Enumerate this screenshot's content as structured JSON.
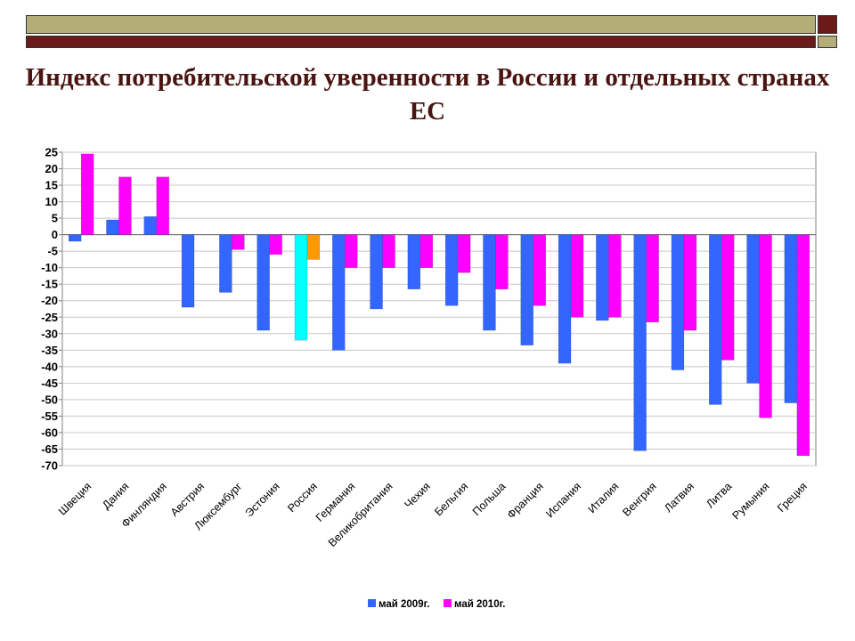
{
  "slide": {
    "title": "Индекс потребительской уверенности в России и отдельных странах ЕС"
  },
  "colors": {
    "series1": "#3366ff",
    "series2": "#ff00ff",
    "highlight1": "#00ffff",
    "highlight2": "#ff9900",
    "deco_olive": "#b4ad78",
    "deco_maroon": "#6b1a1a",
    "title": "#4a1410"
  },
  "chart_data": {
    "type": "bar",
    "title": "",
    "xlabel": "",
    "ylabel": "",
    "ylim": [
      -70,
      25
    ],
    "yticks": [
      25,
      20,
      15,
      10,
      5,
      0,
      -5,
      -10,
      -15,
      -20,
      -25,
      -30,
      -35,
      -40,
      -45,
      -50,
      -55,
      -60,
      -65,
      -70
    ],
    "grid": true,
    "legend_position": "bottom",
    "categories": [
      "Швеция",
      "Дания",
      "Финляндия",
      "Австрия",
      "Люксембург",
      "Эстония",
      "Россия",
      "Германия",
      "Великобритания",
      "Чехия",
      "Бельгия",
      "Польша",
      "Франция",
      "Испания",
      "Италия",
      "Венгрия",
      "Латвия",
      "Литва",
      "Румыния",
      "Греция"
    ],
    "highlight_category": "Россия",
    "series": [
      {
        "name": "май 2009г.",
        "values": [
          -2,
          4.5,
          5.5,
          -22,
          -17.5,
          -29,
          -32,
          -35,
          -22.5,
          -16.5,
          -21.5,
          -29,
          -33.5,
          -39,
          -26,
          -65.5,
          -41,
          -51.5,
          -45,
          -51
        ]
      },
      {
        "name": "май 2010г.",
        "values": [
          24.5,
          17.5,
          17.5,
          null,
          -4.5,
          -6,
          -7.5,
          -10,
          -10,
          -10,
          -11.5,
          -16.5,
          -21.5,
          -25,
          -25,
          -26.5,
          -29,
          -38,
          -55.5,
          -67
        ]
      }
    ]
  }
}
